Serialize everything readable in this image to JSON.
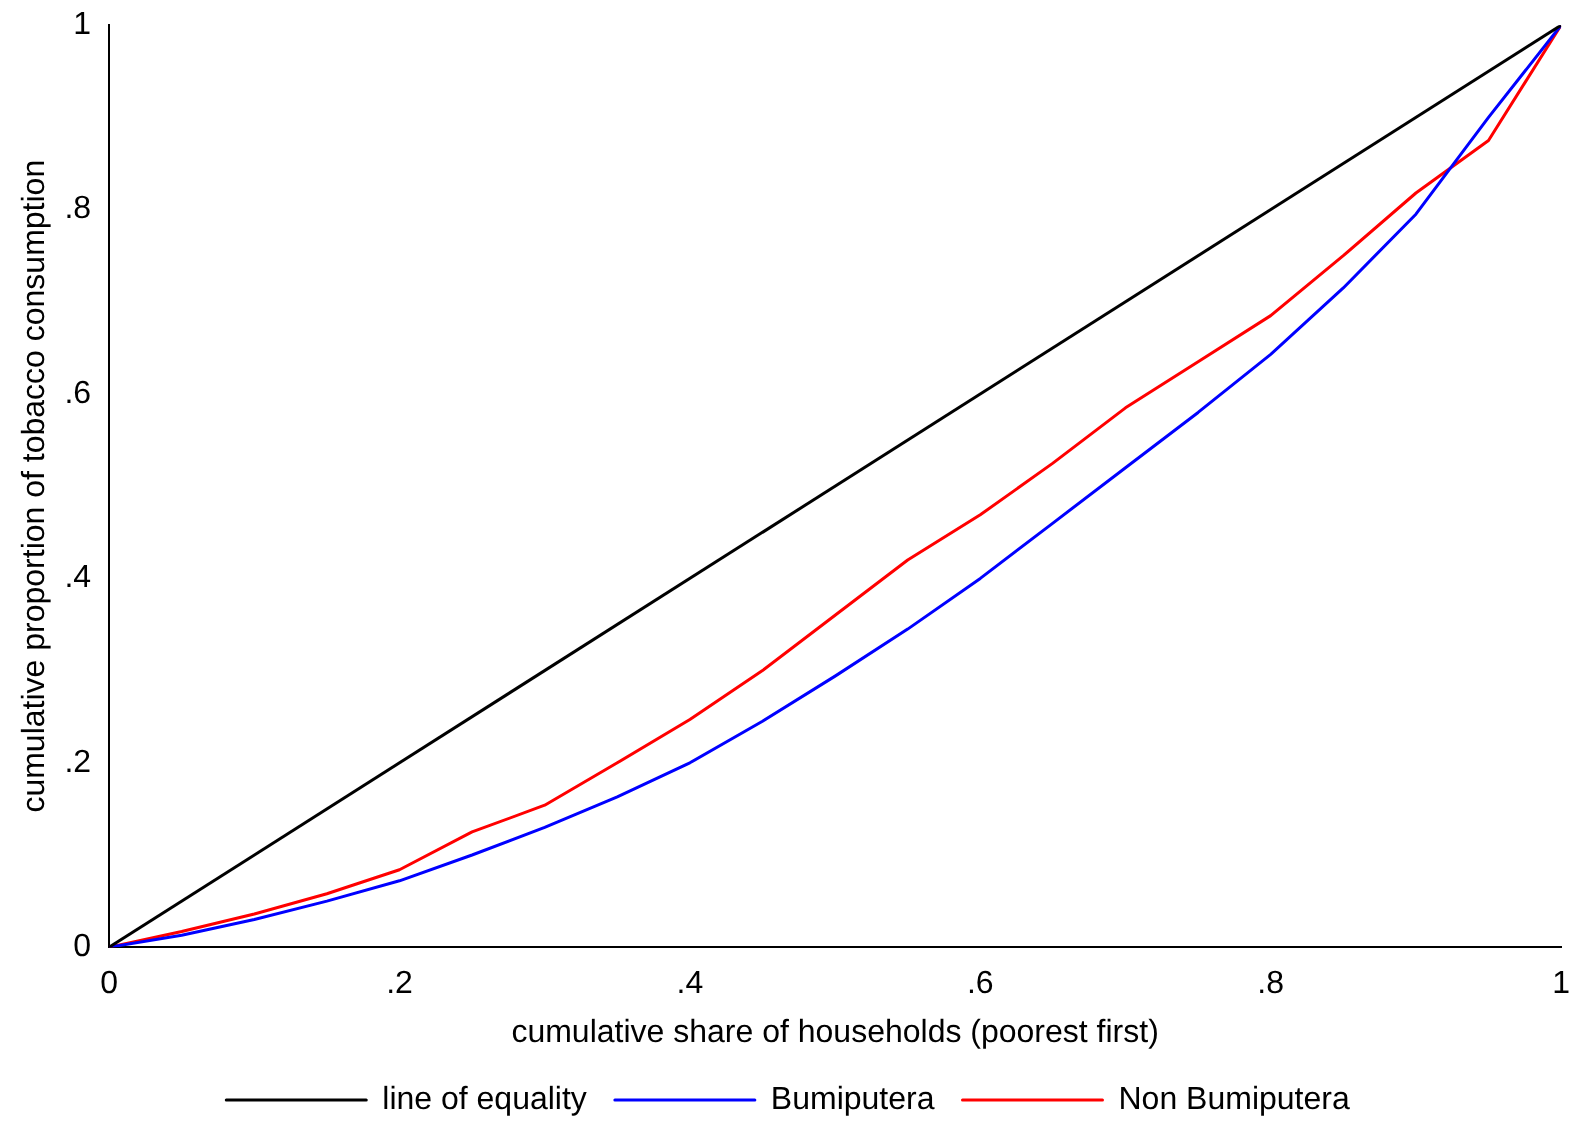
{
  "chart_data": {
    "type": "line",
    "xlabel": "cumulative share of households (poorest first)",
    "ylabel": "cumulative proportion of tobacco consumption",
    "xlim": [
      0,
      1
    ],
    "ylim": [
      0,
      1
    ],
    "xticks": [
      0,
      {
        "value": 0.2,
        "label": ".2"
      },
      {
        "value": 0.4,
        "label": ".4"
      },
      {
        "value": 0.6,
        "label": ".6"
      },
      {
        "value": 0.8,
        "label": ".8"
      },
      1
    ],
    "yticks": [
      0,
      {
        "value": 0.2,
        "label": ".2"
      },
      {
        "value": 0.4,
        "label": ".4"
      },
      {
        "value": 0.6,
        "label": ".6"
      },
      {
        "value": 0.8,
        "label": ".8"
      },
      1
    ],
    "grid": false,
    "legend": "bottom",
    "marker": "none",
    "line_style": "solid",
    "series": [
      {
        "name": "line of equality",
        "color": "#000000",
        "x": [
          0,
          1
        ],
        "values": [
          0,
          1
        ]
      },
      {
        "name": "Bumiputera",
        "color": "#0000ff",
        "x": [
          0,
          0.05,
          0.1,
          0.15,
          0.2,
          0.25,
          0.3,
          0.35,
          0.4,
          0.45,
          0.5,
          0.55,
          0.6,
          0.65,
          0.7,
          0.75,
          0.8,
          0.85,
          0.9,
          0.95,
          1
        ],
        "values": [
          0,
          0.013,
          0.03,
          0.05,
          0.072,
          0.1,
          0.13,
          0.163,
          0.2,
          0.245,
          0.294,
          0.345,
          0.4,
          0.46,
          0.52,
          0.58,
          0.643,
          0.715,
          0.795,
          0.9,
          1
        ]
      },
      {
        "name": "Non Bumiputera",
        "color": "#ff0000",
        "x": [
          0,
          0.05,
          0.1,
          0.15,
          0.2,
          0.25,
          0.3,
          0.35,
          0.4,
          0.45,
          0.5,
          0.55,
          0.6,
          0.65,
          0.7,
          0.75,
          0.8,
          0.85,
          0.9,
          0.95,
          1
        ],
        "values": [
          0,
          0.017,
          0.036,
          0.058,
          0.084,
          0.125,
          0.154,
          0.2,
          0.247,
          0.3,
          0.36,
          0.42,
          0.469,
          0.525,
          0.585,
          0.635,
          0.685,
          0.75,
          0.818,
          0.875,
          1
        ]
      }
    ]
  }
}
